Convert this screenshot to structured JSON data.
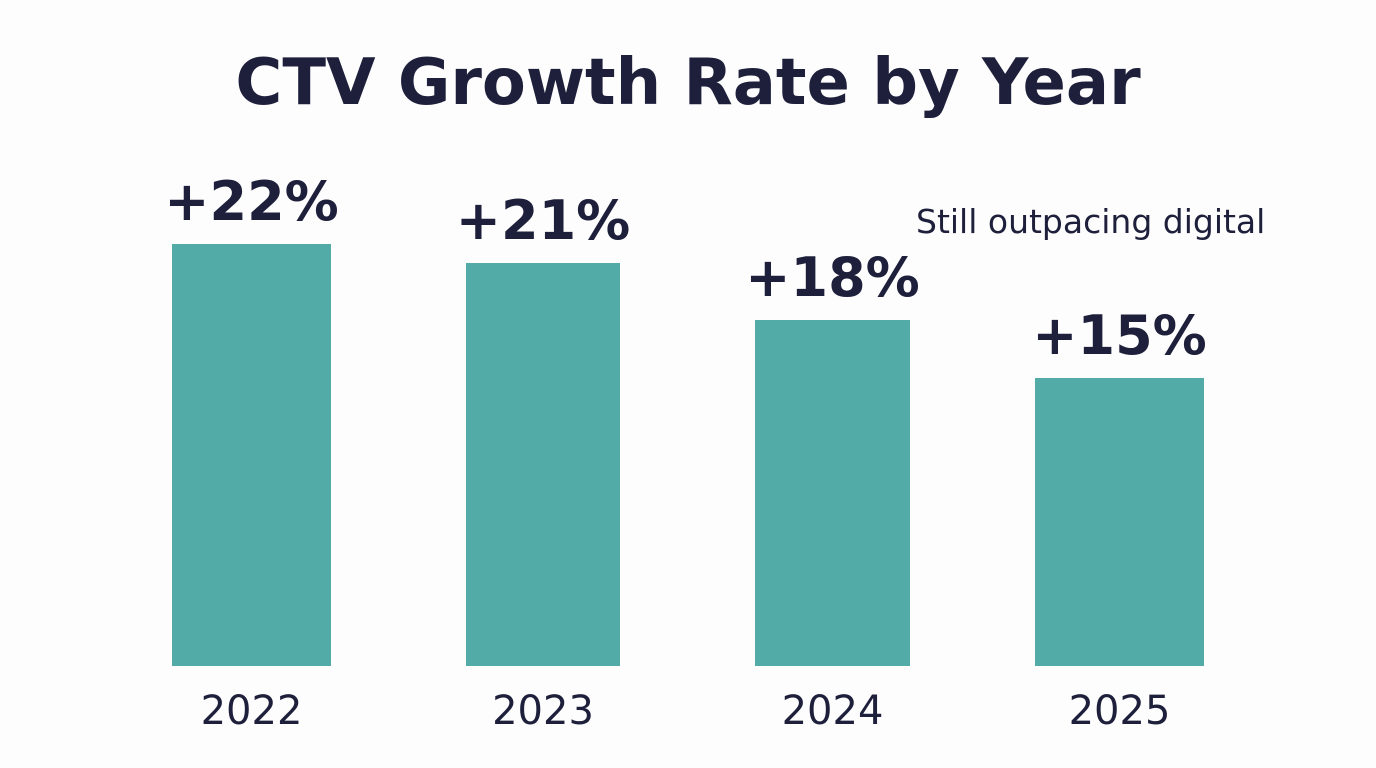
{
  "chart_data": {
    "type": "bar",
    "title": "CTV Growth Rate by Year",
    "categories": [
      "2022",
      "2023",
      "2024",
      "2025"
    ],
    "values": [
      22,
      21,
      18,
      15
    ],
    "data_labels": [
      "+22%",
      "+21%",
      "+18%",
      "+15%"
    ],
    "annotation": "Still outpacing digital",
    "xlabel": "",
    "ylabel": "",
    "ylim": [
      0,
      25
    ],
    "grid": false,
    "colors": {
      "bar": "#52aba6",
      "text": "#1e1f3b"
    }
  }
}
